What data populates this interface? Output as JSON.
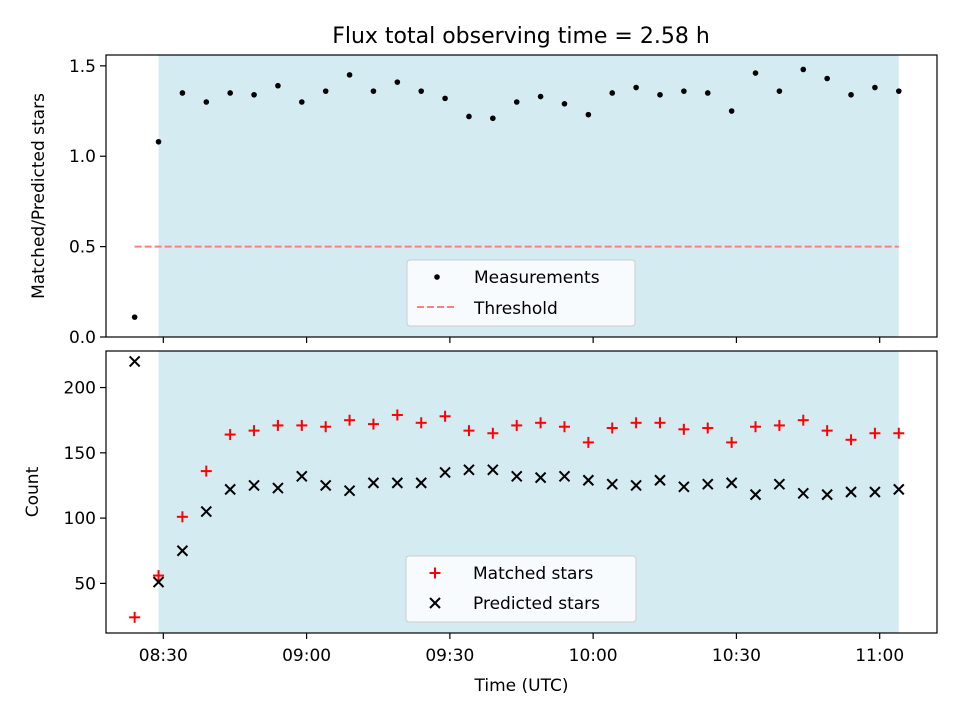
{
  "chart_data": [
    {
      "type": "scatter",
      "title": "Flux total observing time = 2.58 h",
      "ylabel": "Matched/Predicted stars",
      "xlabel": "",
      "xlim": [
        "08:18",
        "11:12"
      ],
      "ylim": [
        0,
        1.56
      ],
      "x_ticks": [
        "08:30",
        "09:00",
        "09:30",
        "10:00",
        "10:30",
        "11:00"
      ],
      "y_ticks": [
        "0.0",
        "0.5",
        "1.0",
        "1.5"
      ],
      "shaded_region": {
        "from": "08:29",
        "to": "11:04",
        "color": "#add8e6"
      },
      "legend": {
        "placement": "bottom-center",
        "entries": [
          "Measurements",
          "Threshold"
        ]
      },
      "threshold": {
        "value": 0.5,
        "from": "08:24",
        "to": "11:04",
        "color": "#ff7f7f"
      },
      "series": [
        {
          "name": "Measurements",
          "color": "#000000",
          "marker": "dot",
          "x": [
            "08:24",
            "08:29",
            "08:34",
            "08:39",
            "08:44",
            "08:49",
            "08:54",
            "08:59",
            "09:04",
            "09:09",
            "09:14",
            "09:19",
            "09:24",
            "09:29",
            "09:34",
            "09:39",
            "09:44",
            "09:49",
            "09:54",
            "09:59",
            "10:04",
            "10:09",
            "10:14",
            "10:19",
            "10:24",
            "10:29",
            "10:34",
            "10:39",
            "10:44",
            "10:49",
            "10:54",
            "10:59",
            "11:04"
          ],
          "y": [
            0.11,
            1.08,
            1.35,
            1.3,
            1.35,
            1.34,
            1.39,
            1.3,
            1.36,
            1.45,
            1.36,
            1.41,
            1.36,
            1.32,
            1.22,
            1.21,
            1.3,
            1.33,
            1.29,
            1.23,
            1.35,
            1.38,
            1.34,
            1.36,
            1.35,
            1.25,
            1.46,
            1.36,
            1.48,
            1.43,
            1.34,
            1.38,
            1.36
          ]
        }
      ]
    },
    {
      "type": "scatter",
      "title": "",
      "ylabel": "Count",
      "xlabel": "Time (UTC)",
      "xlim": [
        "08:18",
        "11:12"
      ],
      "ylim": [
        12,
        228
      ],
      "x_ticks": [
        "08:30",
        "09:00",
        "09:30",
        "10:00",
        "10:30",
        "11:00"
      ],
      "y_ticks": [
        "50",
        "100",
        "150",
        "200"
      ],
      "shaded_region": {
        "from": "08:29",
        "to": "11:04",
        "color": "#add8e6"
      },
      "legend": {
        "placement": "bottom-center",
        "entries": [
          "Matched stars",
          "Predicted stars"
        ]
      },
      "series": [
        {
          "name": "Matched stars",
          "color": "#ff0000",
          "marker": "plus",
          "x": [
            "08:24",
            "08:29",
            "08:34",
            "08:39",
            "08:44",
            "08:49",
            "08:54",
            "08:59",
            "09:04",
            "09:09",
            "09:14",
            "09:19",
            "09:24",
            "09:29",
            "09:34",
            "09:39",
            "09:44",
            "09:49",
            "09:54",
            "09:59",
            "10:04",
            "10:09",
            "10:14",
            "10:19",
            "10:24",
            "10:29",
            "10:34",
            "10:39",
            "10:44",
            "10:49",
            "10:54",
            "10:59",
            "11:04"
          ],
          "y": [
            24,
            56,
            101,
            136,
            164,
            167,
            171,
            171,
            170,
            175,
            172,
            179,
            173,
            178,
            167,
            165,
            171,
            173,
            170,
            158,
            169,
            173,
            173,
            168,
            169,
            158,
            170,
            171,
            175,
            167,
            160,
            165,
            165
          ]
        },
        {
          "name": "Predicted stars",
          "color": "#000000",
          "marker": "x",
          "x": [
            "08:24",
            "08:29",
            "08:34",
            "08:39",
            "08:44",
            "08:49",
            "08:54",
            "08:59",
            "09:04",
            "09:09",
            "09:14",
            "09:19",
            "09:24",
            "09:29",
            "09:34",
            "09:39",
            "09:44",
            "09:49",
            "09:54",
            "09:59",
            "10:04",
            "10:09",
            "10:14",
            "10:19",
            "10:24",
            "10:29",
            "10:34",
            "10:39",
            "10:44",
            "10:49",
            "10:54",
            "10:59",
            "11:04"
          ],
          "y": [
            220,
            51,
            75,
            105,
            122,
            125,
            123,
            132,
            125,
            121,
            127,
            127,
            127,
            135,
            137,
            137,
            132,
            131,
            132,
            129,
            126,
            125,
            129,
            124,
            126,
            127,
            118,
            126,
            119,
            118,
            120,
            120,
            122
          ]
        }
      ]
    }
  ]
}
